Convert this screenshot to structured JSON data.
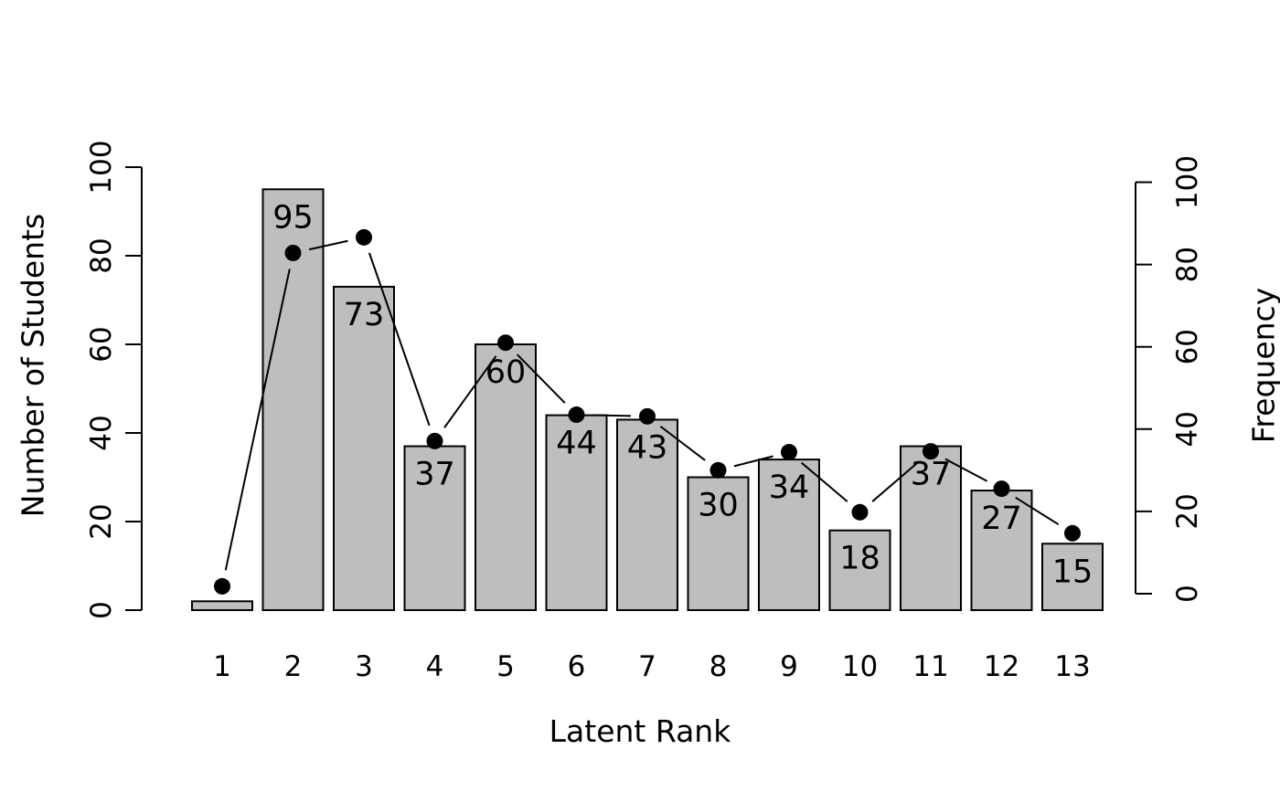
{
  "figure_title": "",
  "chart_data": {
    "type": "bar",
    "overlay": "line-with-points",
    "title": "",
    "xlabel": "Latent Rank",
    "ylabel_left": "Number of Students",
    "ylabel_right": "Frequency",
    "categories": [
      "1",
      "2",
      "3",
      "4",
      "5",
      "6",
      "7",
      "8",
      "9",
      "10",
      "11",
      "12",
      "13"
    ],
    "bar_series_name": "Number of Students",
    "bar_values": [
      2,
      95,
      73,
      37,
      60,
      44,
      43,
      30,
      34,
      18,
      37,
      27,
      15
    ],
    "bar_value_labels": [
      "",
      "95",
      "73",
      "37",
      "60",
      "44",
      "43",
      "30",
      "34",
      "18",
      "37",
      "27",
      "15"
    ],
    "line_series_name": "Frequency",
    "line_values": [
      1.8,
      82.8,
      86.6,
      37.1,
      61.0,
      43.5,
      43.1,
      30.0,
      34.4,
      19.8,
      34.6,
      25.5,
      14.7
    ],
    "ylim_left": [
      0,
      100
    ],
    "ylim_right": [
      0,
      100
    ],
    "yticks": [
      0,
      20,
      40,
      60,
      80,
      100
    ],
    "grid": "off",
    "legend": "none",
    "colors": {
      "background": "#ffffff",
      "bar_fill": "#bebebe",
      "bar_stroke": "#000000",
      "line_color": "#000000",
      "point_color": "#000000",
      "axis_color": "#000000",
      "text_color": "#000000"
    }
  }
}
